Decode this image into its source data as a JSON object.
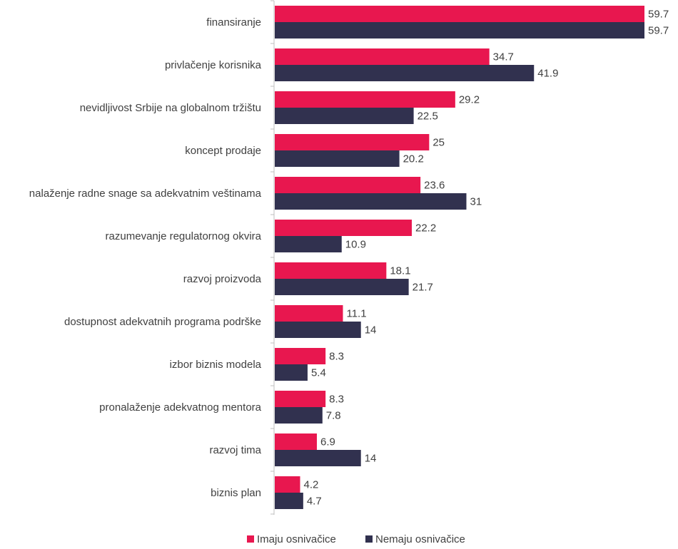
{
  "chart_data": {
    "type": "bar",
    "orientation": "horizontal",
    "categories": [
      "finansiranje",
      "privlačenje korisnika",
      "nevidljivost Srbije na globalnom tržištu",
      "koncept prodaje",
      "nalaženje radne snage sa adekvatnim veštinama",
      "razumevanje regulatornog okvira",
      "razvoj proizvoda",
      "dostupnost adekvatnih programa podrške",
      "izbor biznis modela",
      "pronalaženje adekvatnog mentora",
      "razvoj tima",
      "biznis plan"
    ],
    "series": [
      {
        "name": "Imaju osnivačice",
        "color": "#E8174F",
        "values": [
          59.7,
          34.7,
          29.2,
          25,
          23.6,
          22.2,
          18.1,
          11.1,
          8.3,
          8.3,
          6.9,
          4.2
        ],
        "labels": [
          "59.7",
          "34.7",
          "29.2",
          "25",
          "23.6",
          "22.2",
          "18.1",
          "11.1",
          "8.3",
          "8.3",
          "6.9",
          "4.2"
        ]
      },
      {
        "name": "Nemaju osnivačice",
        "color": "#31314F",
        "values": [
          59.7,
          41.9,
          22.5,
          20.2,
          31,
          10.9,
          21.7,
          14,
          5.4,
          7.8,
          14,
          4.7
        ],
        "labels": [
          "59.7",
          "41.9",
          "22.5",
          "20.2",
          "31",
          "10.9",
          "21.7",
          "14",
          "5.4",
          "7.8",
          "14",
          "4.7"
        ]
      }
    ],
    "xlim": [
      0,
      59.7
    ],
    "grid": false,
    "legend_position": "bottom",
    "axis_color": "#BFBFBF"
  }
}
